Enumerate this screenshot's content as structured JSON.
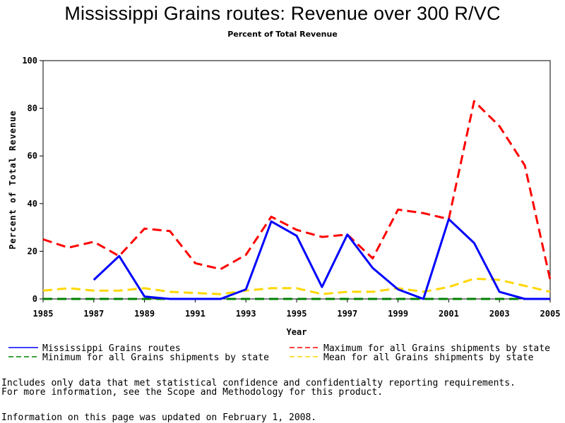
{
  "header": {
    "title": "Mississippi Grains routes: Revenue over 300 R/VC",
    "subtitle": "Percent of Total Revenue"
  },
  "notes": {
    "line1": "Includes only data that met statistical confidence and confidentialty reporting requirements.",
    "line2": "For more information, see the Scope and Methodology for this product.",
    "updated": "Information on this page was updated on February 1, 2008."
  },
  "chart_data": {
    "type": "line",
    "title": "Mississippi Grains routes: Revenue over 300 R/VC",
    "subtitle": "Percent of Total Revenue",
    "xlabel": "Year",
    "ylabel": "Percent of Total Revenue",
    "xlim": [
      1985,
      2005
    ],
    "ylim": [
      0,
      100
    ],
    "x_ticks": [
      "1985",
      "1987",
      "1989",
      "1991",
      "1993",
      "1995",
      "1997",
      "1999",
      "2001",
      "2003",
      "2005"
    ],
    "y_ticks": [
      "0",
      "20",
      "40",
      "60",
      "80",
      "100"
    ],
    "grid": false,
    "legend_position": "bottom",
    "series": [
      {
        "name": "Mississippi Grains routes",
        "color": "#0000ff",
        "dash": "solid",
        "points": [
          [
            1987,
            8
          ],
          [
            1988,
            18
          ],
          [
            1989,
            1
          ],
          [
            1990,
            0
          ],
          [
            1991,
            0
          ],
          [
            1992,
            0
          ],
          [
            1993,
            4
          ],
          [
            1994,
            32.5
          ],
          [
            1995,
            26.5
          ],
          [
            1996,
            5
          ],
          [
            1997,
            27
          ],
          [
            1998,
            13
          ],
          [
            1999,
            4
          ],
          [
            2000,
            0
          ],
          [
            2001,
            33.5
          ],
          [
            2002,
            23.5
          ],
          [
            2003,
            3
          ],
          [
            2004,
            0
          ],
          [
            2005,
            0
          ]
        ]
      },
      {
        "name": "Maximum for all Grains shipments by state",
        "color": "#ff0000",
        "dash": "dashed",
        "points": [
          [
            1985,
            25
          ],
          [
            1986,
            21.5
          ],
          [
            1987,
            24
          ],
          [
            1988,
            18
          ],
          [
            1989,
            29.5
          ],
          [
            1990,
            28.5
          ],
          [
            1991,
            15
          ],
          [
            1992,
            12.5
          ],
          [
            1993,
            18.5
          ],
          [
            1994,
            34.5
          ],
          [
            1995,
            29
          ],
          [
            1996,
            26
          ],
          [
            1997,
            27
          ],
          [
            1998,
            17
          ],
          [
            1999,
            37.5
          ],
          [
            2000,
            36
          ],
          [
            2001,
            33.5
          ],
          [
            2002,
            83
          ],
          [
            2003,
            72.5
          ],
          [
            2004,
            56
          ],
          [
            2005,
            8
          ]
        ]
      },
      {
        "name": "Minimum for all Grains shipments by state",
        "color": "#008000",
        "dash": "dashed",
        "points": [
          [
            1985,
            0
          ],
          [
            1986,
            0
          ],
          [
            1987,
            0
          ],
          [
            1988,
            0
          ],
          [
            1989,
            0
          ],
          [
            1990,
            0
          ],
          [
            1991,
            0
          ],
          [
            1992,
            0
          ],
          [
            1993,
            0
          ],
          [
            1994,
            0
          ],
          [
            1995,
            0
          ],
          [
            1996,
            0
          ],
          [
            1997,
            0
          ],
          [
            1998,
            0
          ],
          [
            1999,
            0
          ],
          [
            2000,
            0
          ],
          [
            2001,
            0
          ],
          [
            2002,
            0
          ],
          [
            2003,
            0
          ],
          [
            2004,
            0
          ],
          [
            2005,
            0
          ]
        ]
      },
      {
        "name": "Mean for all Grains shipments by state",
        "color": "#ffd700",
        "dash": "dashed",
        "points": [
          [
            1985,
            3.5
          ],
          [
            1986,
            4.5
          ],
          [
            1987,
            3.5
          ],
          [
            1988,
            3.5
          ],
          [
            1989,
            4.5
          ],
          [
            1990,
            3
          ],
          [
            1991,
            2.5
          ],
          [
            1992,
            2
          ],
          [
            1993,
            3.5
          ],
          [
            1994,
            4.5
          ],
          [
            1995,
            4.5
          ],
          [
            1996,
            2
          ],
          [
            1997,
            3
          ],
          [
            1998,
            3
          ],
          [
            1999,
            4.5
          ],
          [
            2000,
            3
          ],
          [
            2001,
            5
          ],
          [
            2002,
            8.5
          ],
          [
            2003,
            8
          ],
          [
            2004,
            5.5
          ],
          [
            2005,
            3
          ]
        ]
      }
    ]
  }
}
